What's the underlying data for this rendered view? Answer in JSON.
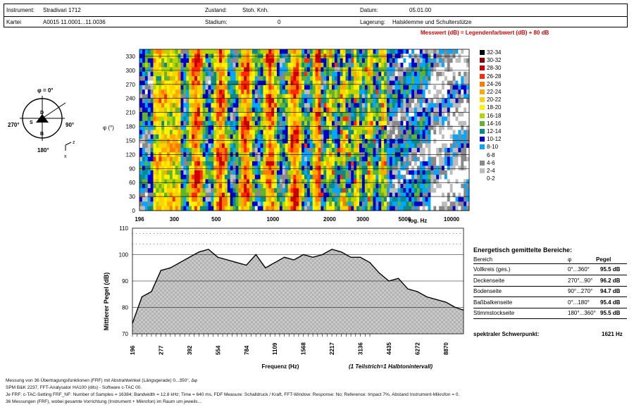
{
  "header": {
    "instrument_label": "Instrument:",
    "instrument_value": "Stradivari 1712",
    "zustand_label": "Zustand:",
    "zustand_value": "Stoh. Knh.",
    "datum_label": "Datum:",
    "datum_value": "05.01.00",
    "kartei_label": "Kartei",
    "kartei_value": "A0015 11.0001...11.0036",
    "stadium_label": "Stadium:",
    "stadium_value": "0",
    "lagerung_label": "Lagerung:",
    "lagerung_value": "Halsklemme und Schulterstütze"
  },
  "measure_note": "Messwert (dB) = Legendenfarbwert (dB) + 80 dB",
  "orientation": {
    "top": "φ = 0°",
    "left": "270°",
    "right": "90°",
    "bottom": "180°",
    "d": "D",
    "b": "B",
    "s": "S",
    "z": "z",
    "x": "x"
  },
  "legend": [
    {
      "label": "32-34",
      "color": "#000000"
    },
    {
      "label": "30-32",
      "color": "#8b0000"
    },
    {
      "label": "28-30",
      "color": "#cc0000"
    },
    {
      "label": "26-28",
      "color": "#ff2a00"
    },
    {
      "label": "24-26",
      "color": "#ff7a00"
    },
    {
      "label": "22-24",
      "color": "#ffa800"
    },
    {
      "label": "20-22",
      "color": "#ffd200"
    },
    {
      "label": "18-20",
      "color": "#fff200"
    },
    {
      "label": "16-18",
      "color": "#b7d500"
    },
    {
      "label": "14-16",
      "color": "#62b430"
    },
    {
      "label": "12-14",
      "color": "#0a8a8a"
    },
    {
      "label": "10-12",
      "color": "#0000cc"
    },
    {
      "label": "8-10",
      "color": "#00a8ff"
    },
    {
      "label": "6-8",
      "color": "#ffffff"
    },
    {
      "label": "4-6",
      "color": "#888888"
    },
    {
      "label": "2-4",
      "color": "#bdbdbd"
    },
    {
      "label": "0-2",
      "color": "#ffffff"
    }
  ],
  "chart_data": [
    {
      "type": "heatmap",
      "xlabel": "log. Hz",
      "ylabel": "φ (°)",
      "x_ticks": [
        "196",
        "300",
        "500",
        "1000",
        "2000",
        "3000",
        "5000",
        "10000"
      ],
      "y_ticks": [
        "0",
        "30",
        "60",
        "90",
        "120",
        "150",
        "180",
        "210",
        "240",
        "270",
        "300",
        "330"
      ],
      "ylim": [
        0,
        345
      ]
    },
    {
      "type": "area",
      "xlabel": "Frequenz (Hz)",
      "xlabel_note": "(1 Teilstrich=1 Halbtonintervall)",
      "ylabel": "Mittlerer Pegel (dB)",
      "ylim": [
        70,
        110
      ],
      "y_ticks": [
        "70",
        "80",
        "90",
        "100",
        "110"
      ],
      "x_ticks": [
        "196",
        "277",
        "392",
        "554",
        "784",
        "1109",
        "1568",
        "2217",
        "3136",
        "4435",
        "6272",
        "8870"
      ],
      "x": [
        196,
        220,
        247,
        277,
        311,
        349,
        392,
        440,
        494,
        554,
        622,
        698,
        784,
        880,
        988,
        1109,
        1245,
        1397,
        1568,
        1760,
        1976,
        2217,
        2489,
        2794,
        3136,
        3520,
        3951,
        4435,
        4978,
        5588,
        6272,
        7040,
        7902,
        8870,
        9956,
        11000
      ],
      "values": [
        74,
        84,
        86,
        94,
        95,
        97,
        99,
        101,
        102,
        99,
        98,
        97,
        96,
        100,
        95,
        97,
        99,
        98,
        100,
        99,
        100,
        102,
        101,
        99,
        99,
        97,
        93,
        90,
        91,
        87,
        86,
        84,
        83,
        82,
        80,
        79
      ]
    }
  ],
  "table": {
    "title": "Energetisch gemittelte Bereiche:",
    "headers": [
      "Bereich",
      "φ",
      "Pegel"
    ],
    "rows": [
      {
        "name": "Vollkreis (ges.)",
        "phi": "0°...360°",
        "pegel": "95.5 dB"
      },
      {
        "name": "Deckenseite",
        "phi": "270°...90°",
        "pegel": "96.2 dB"
      },
      {
        "name": "Bodenseite",
        "phi": "90°...270°",
        "pegel": "94.7 dB"
      },
      {
        "name": "Baßbalkenseite",
        "phi": "0°...180°",
        "pegel": "95.4 dB"
      },
      {
        "name": "Stimmstockseite",
        "phi": "180°...360°",
        "pegel": "95.5 dB"
      }
    ],
    "schwerpunkt_label": "spektraler Schwerpunkt:",
    "schwerpunkt_value": "1621 Hz"
  },
  "footnotes": [
    "Messung von 36 Übertragungsfunktionen (FRF) mit Abstrahlwinkel (Längsgerade) 0...350°, Δφ",
    "SPM B&K 2237, FFT-Analysator HA100 (dits) - Software c-TAC 00.",
    "Je FRF: c-TAC-Setting FRF_NF: Number of Samples = 16384; Bandwidth = 12.8 kHz; Time = 640 ms, FDF Measure: Schalldruck / Kraft, FFT-Window: Response: No; Reference: Impact 7%, Abstand Instrument-Mikrofon = 0.",
    "36 Messungen (FRF), wobei gesamte Vorrichtung (Instrument + Mikrofon) im Raum um jeweils..."
  ]
}
